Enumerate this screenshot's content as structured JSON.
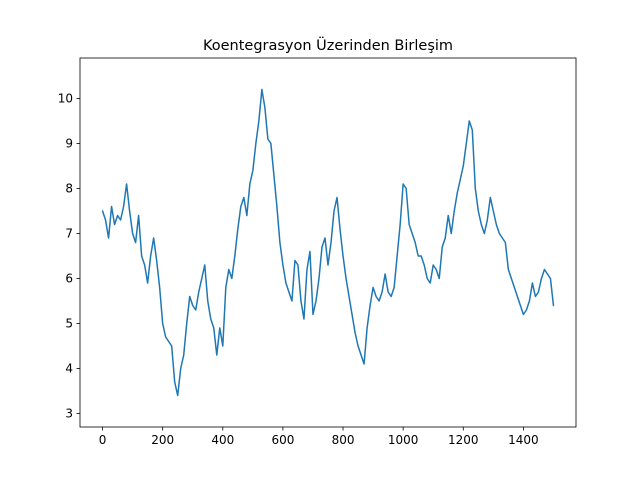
{
  "chart_data": {
    "type": "line",
    "title": "Koentegrasyon Üzerinden Birleşim",
    "xlabel": "",
    "ylabel": "",
    "xlim": [
      -75,
      1575
    ],
    "ylim": [
      2.7,
      10.9
    ],
    "x_ticks": [
      0,
      200,
      400,
      600,
      800,
      1000,
      1200,
      1400
    ],
    "x_tick_labels": [
      "0",
      "200",
      "400",
      "600",
      "800",
      "1000",
      "1200",
      "1400"
    ],
    "y_ticks": [
      3,
      4,
      5,
      6,
      7,
      8,
      9,
      10
    ],
    "y_tick_labels": [
      "3",
      "4",
      "5",
      "6",
      "7",
      "8",
      "9",
      "10"
    ],
    "grid": false,
    "legend": "none",
    "series": [
      {
        "color": "#1f77b4",
        "x_start": 0,
        "x_step": 10,
        "values": [
          7.5,
          7.3,
          6.9,
          7.6,
          7.2,
          7.4,
          7.3,
          7.6,
          8.1,
          7.5,
          7.0,
          6.8,
          7.4,
          6.5,
          6.3,
          5.9,
          6.5,
          6.9,
          6.4,
          5.8,
          5.0,
          4.7,
          4.6,
          4.5,
          3.7,
          3.4,
          4.0,
          4.3,
          5.0,
          5.6,
          5.4,
          5.3,
          5.7,
          6.0,
          6.3,
          5.5,
          5.1,
          4.9,
          4.3,
          4.9,
          4.5,
          5.8,
          6.2,
          6.0,
          6.5,
          7.1,
          7.6,
          7.8,
          7.4,
          8.1,
          8.4,
          9.0,
          9.5,
          10.2,
          9.8,
          9.1,
          9.0,
          8.3,
          7.6,
          6.8,
          6.3,
          5.9,
          5.7,
          5.5,
          6.4,
          6.3,
          5.5,
          5.1,
          6.2,
          6.6,
          5.2,
          5.5,
          6.0,
          6.7,
          6.9,
          6.3,
          6.8,
          7.5,
          7.8,
          7.1,
          6.5,
          6.0,
          5.6,
          5.2,
          4.8,
          4.5,
          4.3,
          4.1,
          4.9,
          5.4,
          5.8,
          5.6,
          5.5,
          5.7,
          6.1,
          5.7,
          5.6,
          5.8,
          6.5,
          7.2,
          8.1,
          8.0,
          7.2,
          7.0,
          6.8,
          6.5,
          6.5,
          6.3,
          6.0,
          5.9,
          6.3,
          6.2,
          6.0,
          6.7,
          6.9,
          7.4,
          7.0,
          7.5,
          7.9,
          8.2,
          8.5,
          9.0,
          9.5,
          9.3,
          8.0,
          7.5,
          7.2,
          7.0,
          7.3,
          7.8,
          7.5,
          7.2,
          7.0,
          6.9,
          6.8,
          6.2,
          6.0,
          5.8,
          5.6,
          5.4,
          5.2,
          5.3,
          5.5,
          5.9,
          5.6,
          5.7,
          6.0,
          6.2,
          6.1,
          6.0,
          5.4
        ]
      }
    ]
  }
}
